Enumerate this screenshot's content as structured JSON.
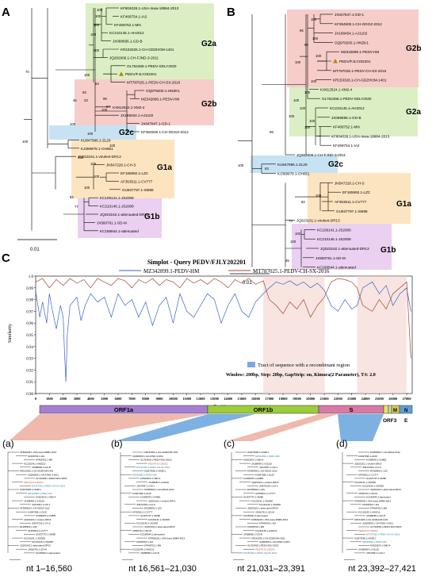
{
  "panels": {
    "A": {
      "letter": "A",
      "scale": "0.01",
      "groups": [
        "G2a",
        "G2b",
        "G2c",
        "G1a",
        "G1b"
      ],
      "taxa": [
        "KF804028.1-USA-Iowa-18984-2013",
        "KF468754.1-IA2",
        "KF468752.1-MN",
        "KC210145.1-AH2012",
        "JX088695.1-GD-B",
        "KR153326.1-CH-GDZHOM-1401",
        "JQ282909.1-CH-FJND-3-2011",
        "OL762458.1-PEDV-SDLY2020",
        "PEDV/FJLY202201",
        "MT787025.1-PEDV-CH-SX-2016",
        "OQ979200.1-HNZK1",
        "MZ342899.1-PEDV-HM",
        "KX812524.1-XM2-4",
        "JX188454.1-AJ1102",
        "JX647847.1-GD-1",
        "KF384500.1-CH-GDGZ-2012",
        "KU847996.1-ZL29",
        "KJ399978.1-OH851",
        "JQ023161.1-virulent-DR13",
        "JN547228.1-CH-S",
        "EF185992.1-LZC",
        "AF353511.1-CV777",
        "GU937797.1-SM98",
        "KC109141.1-JS2008",
        "KC210146.1-JS2008",
        "JQ023162.1-attenuated-DR13",
        "JX560761.1-SD-M",
        "KC189944.1-attenuated"
      ],
      "bootstrap": [
        "100",
        "100",
        "100",
        "100",
        "100",
        "100",
        "70",
        "64",
        "93",
        "99",
        "46",
        "23",
        "97",
        "100",
        "100",
        "100",
        "100",
        "100",
        "100",
        "100",
        "100",
        "100",
        "84",
        "77"
      ]
    },
    "B": {
      "letter": "B",
      "scale": "0.01",
      "groups": [
        "G2b",
        "G2a",
        "G2c",
        "G1a",
        "G1b"
      ],
      "taxa": [
        "JX647847.1-GD-1",
        "KF384500.1-CH-GDGZ-2012",
        "JX188454.1-AJ1102",
        "OQ979200.1-HNZK1",
        "MZ342899.1-PEDV-HM",
        "PEDV/FJLY202201",
        "MT787025.1-PEDV-CH-SX-2016",
        "KR153326.1-CH-GDZHOM-1401",
        "KX812524.1-XM2-4",
        "OL762458.1-PEDV-SDLY2020",
        "KC210145.1-AH2012",
        "JX088695.1-GD-B",
        "KF468752.1-MN",
        "KF804028.1-USA-Iowa-18984-2013",
        "KF468754.1-IA2",
        "JQ282909.1-CH-FJND-3-2011",
        "KU847996.1-ZL29",
        "KJ399978.1-OH851",
        "JN547228.1-CH-S",
        "EF185992.1-LZC",
        "AF353511.1-CV777",
        "GU937797.1-SM98",
        "JQ023161.1-virulent-DR13",
        "KC109141.1-JS2008",
        "KC210146.1-JS2008",
        "JQ023162.1-attenuated-DR13",
        "JX560761.1-SD-M",
        "KC189944.1-attenuated"
      ],
      "bootstrap": [
        "100",
        "96",
        "100",
        "99",
        "100",
        "100",
        "100",
        "100",
        "100",
        "100",
        "100",
        "100",
        "100",
        "99",
        "100",
        "93",
        "100",
        "82",
        "73",
        "100",
        "100",
        "45"
      ]
    },
    "C": {
      "letter": "C",
      "title": "Simplot - Query  PEDV/FJLY202201",
      "legend": [
        "MZ342899.1-PEDV-HM",
        "MT787025.1-PEDV-CH-SX-2016"
      ],
      "ylabel": "Similarity",
      "xlabel": "Position",
      "yticks": [
        "1.0",
        "0.99",
        "0.98",
        "0.97",
        "0.96",
        "0.95",
        "0.94",
        "0.93",
        "0.92",
        "0.91",
        "0.90"
      ],
      "xticks": [
        "0",
        "1000",
        "2000",
        "3000",
        "4000",
        "5000",
        "6000",
        "7000",
        "8000",
        "9000",
        "10000",
        "11000",
        "12000",
        "13000",
        "14000",
        "15000",
        "16000",
        "17000",
        "18000",
        "19000",
        "20000",
        "21000",
        "22000",
        "23000",
        "24000",
        "25000",
        "26000",
        "27000"
      ],
      "recomb_note": "Tract of sequence with a recombinant region",
      "window_note": "Window: 200bp, Step: 20bp, GapStrip: on, Kimura(2 Parameter), T/t: 2.0",
      "genes": [
        "ORF1a",
        "ORF1b",
        "S",
        "ORF3",
        "E",
        "M",
        "N"
      ]
    },
    "sub": [
      {
        "letter": "(a)",
        "caption": "nt 1–16,560"
      },
      {
        "letter": "(b)",
        "caption": "nt 16,561–21,030"
      },
      {
        "letter": "(c)",
        "caption": "nt 21,031–23,391"
      },
      {
        "letter": "(d)",
        "caption": "nt 23,392–27,421"
      }
    ]
  },
  "colors": {
    "g2a": "#dcefc4",
    "g2b": "#f7cdc9",
    "g2c": "#c7e3f3",
    "g1a": "#fde4c0",
    "g1b": "#ebd0f1",
    "blue_line": "#3a62c8",
    "red_line": "#a5472c",
    "recomb": "#7da7e0",
    "query": "#b8860b"
  },
  "chart_data": {
    "type": "line",
    "title": "Simplot - Query  PEDV/FJLY202201",
    "xlabel": "Position",
    "ylabel": "Similarity",
    "xlim": [
      0,
      27400
    ],
    "ylim": [
      0.9,
      1.0
    ],
    "series": [
      {
        "name": "MZ342899.1-PEDV-HM",
        "x": [
          0,
          300,
          500,
          800,
          1000,
          1200,
          1500,
          1800,
          2000,
          2100,
          2200,
          2300,
          2500,
          3000,
          3300,
          3600,
          4000,
          4500,
          5000,
          5500,
          6000,
          6500,
          7000,
          7500,
          8000,
          8500,
          9000,
          9500,
          10000,
          10500,
          11000,
          11500,
          12000,
          12500,
          13000,
          13500,
          14000,
          14500,
          15000,
          15500,
          16000,
          16560,
          17000,
          17500,
          18000,
          18500,
          19000,
          19500,
          20000,
          20500,
          21000,
          21500,
          22000,
          22500,
          23000,
          23390,
          23800,
          24500,
          25000,
          25500,
          26000,
          26500,
          27000,
          27300
        ],
        "y": [
          0.987,
          0.965,
          0.978,
          0.96,
          0.985,
          0.972,
          0.955,
          0.975,
          0.965,
          0.935,
          0.91,
          0.95,
          0.975,
          0.982,
          0.962,
          0.975,
          0.985,
          0.978,
          0.982,
          0.965,
          0.985,
          0.975,
          0.98,
          0.965,
          0.978,
          0.958,
          0.975,
          0.982,
          0.96,
          0.985,
          0.97,
          0.965,
          0.975,
          0.985,
          0.98,
          0.96,
          0.975,
          0.985,
          0.97,
          0.965,
          0.978,
          0.985,
          0.99,
          0.995,
          0.993,
          0.996,
          0.992,
          0.995,
          0.99,
          0.994,
          0.988,
          0.975,
          0.97,
          0.98,
          0.972,
          0.975,
          0.99,
          0.995,
          0.985,
          0.992,
          0.975,
          0.985,
          0.99,
          0.97
        ]
      },
      {
        "name": "MT787025.1-PEDV-CH-SX-2016",
        "x": [
          0,
          500,
          1000,
          1500,
          2000,
          2500,
          3000,
          3500,
          4000,
          4500,
          5000,
          5500,
          6000,
          6500,
          7000,
          7500,
          8000,
          8500,
          9000,
          9500,
          10000,
          10500,
          11000,
          11500,
          12000,
          12500,
          13000,
          13500,
          14000,
          14500,
          15000,
          15500,
          16000,
          16560,
          17000,
          17500,
          18000,
          18500,
          19000,
          19500,
          20000,
          20500,
          21000,
          21500,
          22000,
          22500,
          23000,
          23390,
          23800,
          24500,
          25000,
          25500,
          26000,
          26500,
          27000,
          27300
        ],
        "y": [
          0.995,
          0.998,
          0.99,
          0.997,
          0.992,
          0.998,
          0.994,
          0.997,
          0.99,
          0.998,
          0.995,
          0.992,
          0.998,
          0.996,
          0.99,
          0.997,
          0.994,
          0.998,
          0.992,
          0.997,
          0.995,
          0.99,
          0.998,
          0.994,
          0.997,
          0.993,
          0.998,
          0.995,
          0.99,
          0.997,
          0.994,
          0.998,
          0.993,
          0.996,
          0.98,
          0.975,
          0.968,
          0.978,
          0.972,
          0.98,
          0.965,
          0.975,
          0.982,
          0.995,
          0.998,
          0.997,
          0.995,
          0.99,
          0.975,
          0.97,
          0.98,
          0.972,
          0.985,
          0.99,
          0.995,
          0.93
        ]
      }
    ]
  }
}
